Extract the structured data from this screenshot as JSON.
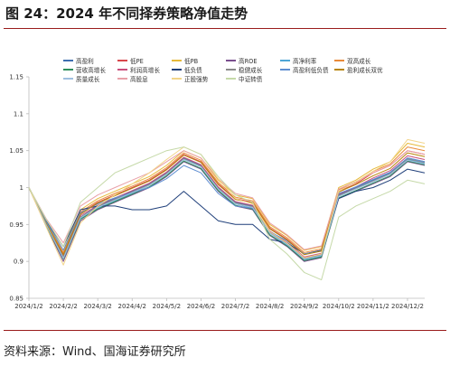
{
  "figure": {
    "title": "图 24：2024 年不同择券策略净值走势",
    "source": "资料来源：Wind、国海证券研究所"
  },
  "chart_data": {
    "type": "line",
    "x": [
      "2024/1/2",
      "2024/1/17",
      "2024/2/2",
      "2024/2/19",
      "2024/3/2",
      "2024/3/17",
      "2024/4/2",
      "2024/4/17",
      "2024/5/2",
      "2024/5/17",
      "2024/6/2",
      "2024/6/17",
      "2024/7/2",
      "2024/7/17",
      "2024/8/2",
      "2024/8/17",
      "2024/9/2",
      "2024/9/17",
      "2024/10/2",
      "2024/10/17",
      "2024/11/2",
      "2024/11/17",
      "2024/12/2",
      "2024/12/17"
    ],
    "x_tick_labels": [
      "2024/1/2",
      "2024/2/2",
      "2024/3/2",
      "2024/4/2",
      "2024/5/2",
      "2024/6/2",
      "2024/7/2",
      "2024/8/2",
      "2024/9/2",
      "2024/10/2",
      "2024/11/2",
      "2024/12/2"
    ],
    "ylim": [
      0.85,
      1.15
    ],
    "yticks": [
      "0.85",
      "0.9",
      "0.95",
      "1",
      "1.05",
      "1.1",
      "1.15"
    ],
    "grid": false,
    "legend_position": "top",
    "series": [
      {
        "name": "高盈利",
        "color": "#3e6fb0",
        "values": [
          1.0,
          0.95,
          0.905,
          0.96,
          0.975,
          0.985,
          0.995,
          1.005,
          1.02,
          1.04,
          1.03,
          1.0,
          0.98,
          0.975,
          0.94,
          0.925,
          0.905,
          0.91,
          0.99,
          1.0,
          1.01,
          1.02,
          1.04,
          1.035
        ]
      },
      {
        "name": "低PE",
        "color": "#d9474b",
        "values": [
          1.0,
          0.952,
          0.91,
          0.965,
          0.98,
          0.99,
          1.0,
          1.01,
          1.025,
          1.045,
          1.035,
          1.005,
          0.985,
          0.98,
          0.945,
          0.93,
          0.91,
          0.915,
          0.995,
          1.005,
          1.02,
          1.03,
          1.05,
          1.045
        ]
      },
      {
        "name": "低PB",
        "color": "#e6b93a",
        "values": [
          1.0,
          0.955,
          0.915,
          0.97,
          0.985,
          0.995,
          1.005,
          1.015,
          1.03,
          1.05,
          1.04,
          1.01,
          0.99,
          0.985,
          0.95,
          0.935,
          0.915,
          0.92,
          1.0,
          1.01,
          1.025,
          1.035,
          1.06,
          1.055
        ]
      },
      {
        "name": "高ROE",
        "color": "#7a4f8f",
        "values": [
          1.0,
          0.948,
          0.9,
          0.955,
          0.97,
          0.98,
          0.99,
          1.0,
          1.015,
          1.035,
          1.025,
          0.995,
          0.975,
          0.97,
          0.935,
          0.92,
          0.9,
          0.905,
          0.985,
          0.995,
          1.005,
          1.015,
          1.035,
          1.03
        ]
      },
      {
        "name": "高净利率",
        "color": "#4ea6d6",
        "values": [
          1.0,
          0.95,
          0.905,
          0.958,
          0.972,
          0.982,
          0.992,
          1.003,
          1.018,
          1.038,
          1.028,
          0.998,
          0.978,
          0.972,
          0.938,
          0.922,
          0.902,
          0.907,
          0.988,
          0.998,
          1.008,
          1.018,
          1.038,
          1.033
        ]
      },
      {
        "name": "双高成长",
        "color": "#e98a3a",
        "values": [
          1.0,
          0.953,
          0.912,
          0.967,
          0.982,
          0.992,
          1.002,
          1.012,
          1.027,
          1.047,
          1.037,
          1.007,
          0.987,
          0.982,
          0.947,
          0.932,
          0.912,
          0.917,
          0.997,
          1.007,
          1.022,
          1.032,
          1.055,
          1.05
        ]
      },
      {
        "name": "营收高增长",
        "color": "#2f8f5b",
        "values": [
          1.0,
          0.949,
          0.903,
          0.957,
          0.971,
          0.981,
          0.991,
          1.001,
          1.016,
          1.036,
          1.026,
          0.996,
          0.976,
          0.971,
          0.936,
          0.921,
          0.901,
          0.906,
          0.986,
          0.996,
          1.006,
          1.016,
          1.036,
          1.031
        ]
      },
      {
        "name": "利润高增长",
        "color": "#c94f7c",
        "values": [
          1.0,
          0.951,
          0.907,
          0.962,
          0.976,
          0.986,
          0.996,
          1.006,
          1.021,
          1.041,
          1.031,
          1.001,
          0.981,
          0.976,
          0.941,
          0.926,
          0.906,
          0.911,
          0.991,
          1.001,
          1.013,
          1.023,
          1.043,
          1.038
        ]
      },
      {
        "name": "低负债",
        "color": "#1f3f7a",
        "values": [
          1.0,
          0.955,
          0.92,
          0.97,
          0.975,
          0.975,
          0.97,
          0.97,
          0.975,
          0.995,
          0.975,
          0.955,
          0.95,
          0.95,
          0.93,
          0.925,
          0.91,
          0.915,
          0.985,
          0.995,
          1.0,
          1.01,
          1.025,
          1.02
        ]
      },
      {
        "name": "稳健成长",
        "color": "#8a8a8a",
        "values": [
          1.0,
          0.95,
          0.906,
          0.96,
          0.974,
          0.984,
          0.994,
          1.004,
          1.019,
          1.039,
          1.029,
          0.999,
          0.979,
          0.974,
          0.939,
          0.924,
          0.904,
          0.909,
          0.989,
          0.999,
          1.009,
          1.019,
          1.039,
          1.034
        ]
      },
      {
        "name": "高盈利低负债",
        "color": "#5f8ed1",
        "values": [
          1.0,
          0.954,
          0.915,
          0.966,
          0.978,
          0.986,
          0.993,
          1.0,
          1.012,
          1.03,
          1.02,
          0.992,
          0.975,
          0.972,
          0.94,
          0.928,
          0.91,
          0.914,
          0.992,
          1.001,
          1.011,
          1.021,
          1.04,
          1.035
        ]
      },
      {
        "name": "盈利成长双优",
        "color": "#b8860b",
        "values": [
          1.0,
          0.952,
          0.909,
          0.964,
          0.979,
          0.989,
          0.999,
          1.009,
          1.024,
          1.044,
          1.034,
          1.004,
          0.984,
          0.979,
          0.944,
          0.929,
          0.909,
          0.914,
          0.994,
          1.004,
          1.016,
          1.026,
          1.047,
          1.042
        ]
      },
      {
        "name": "质量成长",
        "color": "#9fbfe0",
        "values": [
          1.0,
          0.95,
          0.904,
          0.959,
          0.973,
          0.983,
          0.993,
          1.003,
          1.018,
          1.038,
          1.028,
          0.998,
          0.978,
          0.973,
          0.938,
          0.923,
          0.903,
          0.908,
          0.988,
          0.998,
          1.008,
          1.018,
          1.037,
          1.032
        ]
      },
      {
        "name": "高股息",
        "color": "#e8a0a8",
        "values": [
          1.0,
          0.958,
          0.925,
          0.975,
          0.99,
          1.0,
          1.01,
          1.02,
          1.035,
          1.05,
          1.04,
          1.012,
          0.992,
          0.986,
          0.952,
          0.936,
          0.916,
          0.921,
          0.998,
          1.008,
          1.02,
          1.03,
          1.05,
          1.045
        ]
      },
      {
        "name": "正股强势",
        "color": "#f2d58a",
        "values": [
          1.0,
          0.947,
          0.895,
          0.952,
          0.975,
          0.99,
          1.005,
          1.02,
          1.038,
          1.055,
          1.045,
          1.012,
          0.985,
          0.978,
          0.94,
          0.925,
          0.905,
          0.91,
          0.995,
          1.008,
          1.022,
          1.035,
          1.065,
          1.06
        ]
      },
      {
        "name": "中证转债",
        "color": "#c5d9a8",
        "values": [
          1.0,
          0.957,
          0.92,
          0.98,
          1.0,
          1.02,
          1.03,
          1.04,
          1.05,
          1.055,
          1.045,
          1.015,
          0.99,
          0.98,
          0.93,
          0.91,
          0.885,
          0.875,
          0.96,
          0.975,
          0.985,
          0.995,
          1.01,
          1.005
        ]
      }
    ]
  }
}
